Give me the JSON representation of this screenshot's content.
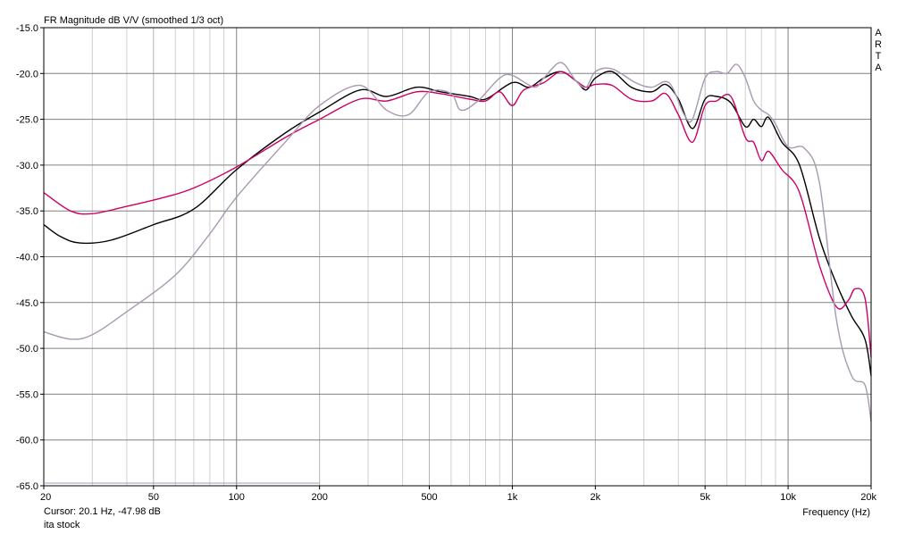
{
  "chart_data": {
    "type": "line",
    "title": "FR Magnitude dB V/V (smoothed 1/3 oct)",
    "xlabel": "Frequency (Hz)",
    "ylabel": "",
    "x_scale": "log",
    "xlim": [
      20,
      20000
    ],
    "ylim": [
      -65,
      -15
    ],
    "x_ticks": [
      20,
      50,
      100,
      200,
      500,
      1000,
      2000,
      5000,
      10000,
      20000
    ],
    "x_tick_labels": [
      "20",
      "50",
      "100",
      "200",
      "500",
      "1k",
      "2k",
      "5k",
      "10k",
      "20k"
    ],
    "y_ticks": [
      -15,
      -20,
      -25,
      -30,
      -35,
      -40,
      -45,
      -50,
      -55,
      -60,
      -65
    ],
    "y_tick_labels": [
      "-15.0",
      "-20.0",
      "-25.0",
      "-30.0",
      "-35.0",
      "-40.0",
      "-45.0",
      "-50.0",
      "-55.0",
      "-60.0",
      "-65.0"
    ],
    "grid": true,
    "legend": "none",
    "series": [
      {
        "color": "#000000",
        "points": [
          [
            20,
            -36.5
          ],
          [
            23,
            -37.8
          ],
          [
            27,
            -38.5
          ],
          [
            35,
            -38.2
          ],
          [
            50,
            -36.5
          ],
          [
            70,
            -34.8
          ],
          [
            100,
            -30.5
          ],
          [
            150,
            -26.5
          ],
          [
            200,
            -24.2
          ],
          [
            280,
            -21.8
          ],
          [
            350,
            -22.5
          ],
          [
            450,
            -21.5
          ],
          [
            550,
            -22
          ],
          [
            700,
            -22.5
          ],
          [
            800,
            -22.8
          ],
          [
            1000,
            -21
          ],
          [
            1150,
            -21.5
          ],
          [
            1300,
            -20.5
          ],
          [
            1500,
            -19.8
          ],
          [
            1700,
            -20.8
          ],
          [
            1850,
            -21.8
          ],
          [
            2000,
            -20.5
          ],
          [
            2300,
            -19.8
          ],
          [
            2700,
            -21.5
          ],
          [
            3200,
            -22
          ],
          [
            3600,
            -21.2
          ],
          [
            4000,
            -22.8
          ],
          [
            4500,
            -26
          ],
          [
            5000,
            -22.8
          ],
          [
            5500,
            -22.5
          ],
          [
            6200,
            -23.2
          ],
          [
            7000,
            -25.8
          ],
          [
            7500,
            -25
          ],
          [
            8000,
            -25.8
          ],
          [
            8500,
            -24.8
          ],
          [
            9500,
            -27.5
          ],
          [
            11000,
            -30
          ],
          [
            13000,
            -38
          ],
          [
            15000,
            -43
          ],
          [
            17000,
            -46.5
          ],
          [
            19000,
            -49
          ],
          [
            20000,
            -53
          ]
        ]
      },
      {
        "color": "#cc0066",
        "points": [
          [
            20,
            -33
          ],
          [
            25,
            -35
          ],
          [
            30,
            -35.3
          ],
          [
            40,
            -34.5
          ],
          [
            55,
            -33.5
          ],
          [
            70,
            -32.5
          ],
          [
            100,
            -30.2
          ],
          [
            150,
            -27
          ],
          [
            200,
            -25
          ],
          [
            280,
            -22.8
          ],
          [
            350,
            -23
          ],
          [
            450,
            -22
          ],
          [
            550,
            -22.2
          ],
          [
            700,
            -22.8
          ],
          [
            800,
            -23
          ],
          [
            900,
            -22
          ],
          [
            1000,
            -23.5
          ],
          [
            1100,
            -21.8
          ],
          [
            1300,
            -21
          ],
          [
            1500,
            -19.8
          ],
          [
            1700,
            -20.8
          ],
          [
            1850,
            -21.5
          ],
          [
            2000,
            -21.2
          ],
          [
            2300,
            -21.3
          ],
          [
            2700,
            -22.8
          ],
          [
            3200,
            -23
          ],
          [
            3600,
            -22.2
          ],
          [
            4000,
            -24.5
          ],
          [
            4500,
            -27.5
          ],
          [
            5000,
            -23.5
          ],
          [
            5500,
            -23
          ],
          [
            6200,
            -22.5
          ],
          [
            7000,
            -27
          ],
          [
            7500,
            -27.5
          ],
          [
            8000,
            -29.5
          ],
          [
            8500,
            -28.5
          ],
          [
            9500,
            -30.5
          ],
          [
            11000,
            -33
          ],
          [
            13000,
            -41
          ],
          [
            15000,
            -45.5
          ],
          [
            16500,
            -44.8
          ],
          [
            17500,
            -43.5
          ],
          [
            19000,
            -44.5
          ],
          [
            20000,
            -51
          ]
        ]
      },
      {
        "color": "#a898b0",
        "points": [
          [
            20,
            -48.2
          ],
          [
            25,
            -49
          ],
          [
            30,
            -48.5
          ],
          [
            40,
            -46
          ],
          [
            60,
            -42
          ],
          [
            80,
            -37.5
          ],
          [
            100,
            -33.5
          ],
          [
            150,
            -27.5
          ],
          [
            200,
            -23.5
          ],
          [
            280,
            -21.3
          ],
          [
            350,
            -24
          ],
          [
            420,
            -24.5
          ],
          [
            500,
            -22
          ],
          [
            600,
            -22.2
          ],
          [
            650,
            -24
          ],
          [
            750,
            -23
          ],
          [
            900,
            -20.5
          ],
          [
            1000,
            -20.2
          ],
          [
            1200,
            -21.5
          ],
          [
            1300,
            -20.5
          ],
          [
            1500,
            -18.8
          ],
          [
            1700,
            -20.8
          ],
          [
            1850,
            -21.5
          ],
          [
            2000,
            -19.8
          ],
          [
            2300,
            -19.5
          ],
          [
            2800,
            -21
          ],
          [
            3200,
            -21.5
          ],
          [
            3700,
            -21
          ],
          [
            4200,
            -24.5
          ],
          [
            4500,
            -25
          ],
          [
            5000,
            -20.5
          ],
          [
            5500,
            -19.8
          ],
          [
            6000,
            -20
          ],
          [
            6500,
            -19
          ],
          [
            7000,
            -20.5
          ],
          [
            7500,
            -23
          ],
          [
            8000,
            -24
          ],
          [
            8500,
            -24.5
          ],
          [
            9000,
            -25.5
          ],
          [
            10000,
            -28
          ],
          [
            11500,
            -28.2
          ],
          [
            13000,
            -32
          ],
          [
            15000,
            -47
          ],
          [
            17000,
            -53
          ],
          [
            19000,
            -54
          ],
          [
            20000,
            -58
          ]
        ]
      }
    ],
    "side_label": "ARTA",
    "cursor_text": "Cursor: 20.1 Hz, -47.98 dB",
    "caption": "ita stock"
  }
}
